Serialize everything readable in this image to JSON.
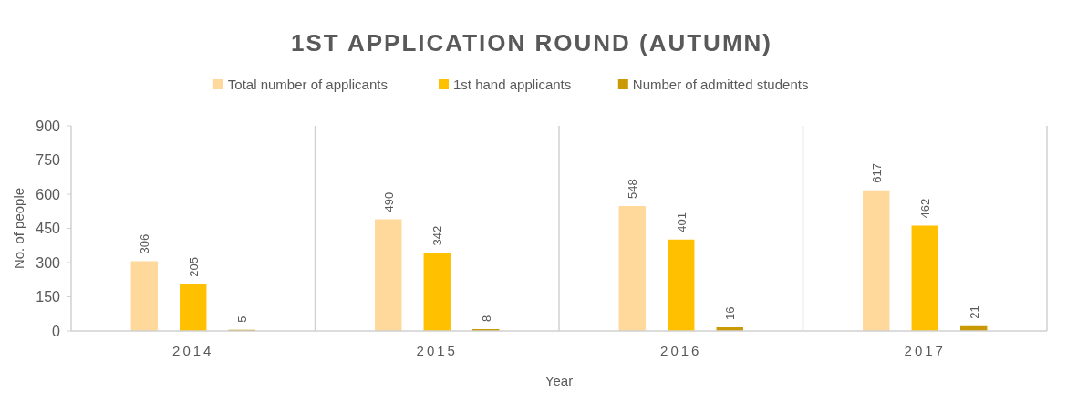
{
  "chart_data": {
    "type": "bar",
    "title": "1ST APPLICATION ROUND (AUTUMN)",
    "xlabel": "Year",
    "ylabel": "No. of people",
    "categories": [
      "2014",
      "2015",
      "2016",
      "2017"
    ],
    "series": [
      {
        "name": "Total number of applicants",
        "color": "#ffd89b",
        "values": [
          306,
          490,
          548,
          617
        ]
      },
      {
        "name": "1st hand applicants",
        "color": "#ffc000",
        "values": [
          205,
          342,
          401,
          462
        ]
      },
      {
        "name": "Number of admitted students",
        "color": "#c99a06",
        "values": [
          5,
          8,
          16,
          21
        ]
      }
    ],
    "ylim": [
      0,
      900
    ],
    "yticks": [
      0,
      150,
      300,
      450,
      600,
      750,
      900
    ],
    "grid": "x",
    "legend": "top",
    "data_labels": true
  }
}
